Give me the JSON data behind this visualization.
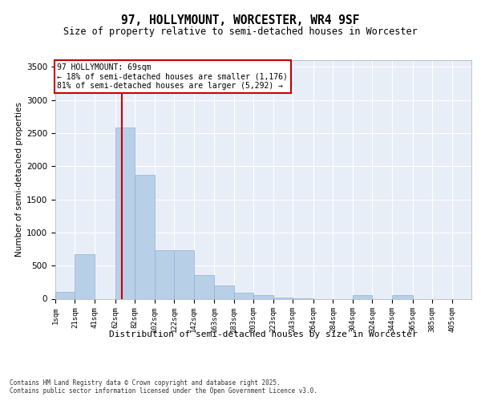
{
  "title": "97, HOLLYMOUNT, WORCESTER, WR4 9SF",
  "subtitle": "Size of property relative to semi-detached houses in Worcester",
  "xlabel": "Distribution of semi-detached houses by size in Worcester",
  "ylabel": "Number of semi-detached properties",
  "bar_color": "#b8cfe8",
  "bar_edge_color": "#90afd4",
  "background_color": "#e8eef8",
  "grid_color": "#ffffff",
  "property_size": 69,
  "annotation_title": "97 HOLLYMOUNT: 69sqm",
  "annotation_line1": "← 18% of semi-detached houses are smaller (1,176)",
  "annotation_line2": "81% of semi-detached houses are larger (5,292) →",
  "footer": "Contains HM Land Registry data © Crown copyright and database right 2025.\nContains public sector information licensed under the Open Government Licence v3.0.",
  "bin_labels": [
    "1sqm",
    "21sqm",
    "41sqm",
    "62sqm",
    "82sqm",
    "102sqm",
    "122sqm",
    "142sqm",
    "163sqm",
    "183sqm",
    "203sqm",
    "223sqm",
    "243sqm",
    "264sqm",
    "284sqm",
    "304sqm",
    "324sqm",
    "344sqm",
    "365sqm",
    "385sqm",
    "405sqm"
  ],
  "bin_left_edges": [
    1,
    21,
    41,
    62,
    82,
    102,
    122,
    142,
    163,
    183,
    203,
    223,
    243,
    264,
    284,
    304,
    324,
    344,
    365,
    385,
    405
  ],
  "bin_widths": [
    20,
    20,
    21,
    20,
    20,
    20,
    20,
    21,
    20,
    20,
    20,
    20,
    21,
    20,
    20,
    20,
    20,
    21,
    20,
    20,
    20
  ],
  "bar_heights": [
    100,
    670,
    0,
    2580,
    1870,
    730,
    730,
    360,
    195,
    90,
    55,
    20,
    5,
    0,
    0,
    50,
    0,
    50,
    0,
    0,
    0
  ],
  "ylim": [
    0,
    3600
  ],
  "yticks": [
    0,
    500,
    1000,
    1500,
    2000,
    2500,
    3000,
    3500
  ],
  "red_line_color": "#cc0000",
  "annotation_box_color": "#ffffff",
  "annotation_box_edge": "#cc0000"
}
